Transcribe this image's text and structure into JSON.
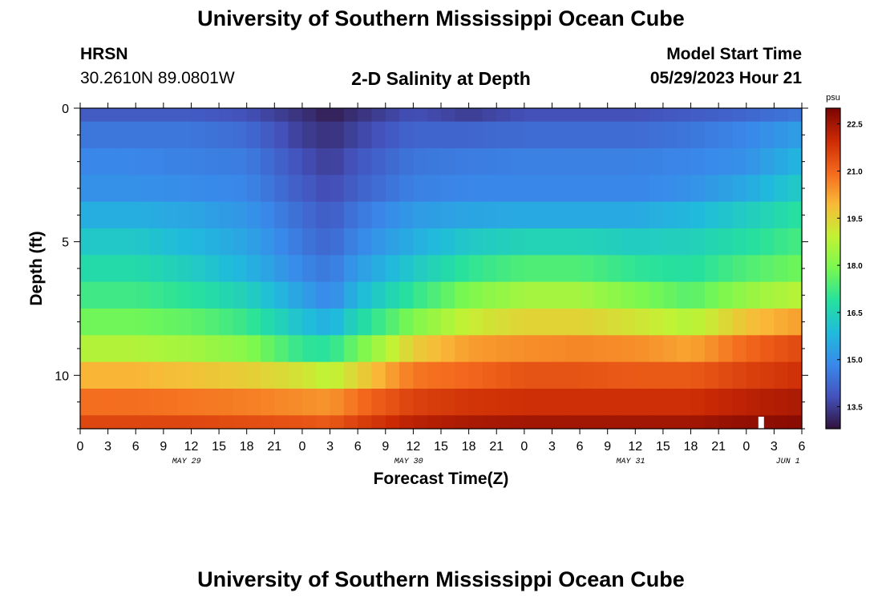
{
  "header": {
    "title": "University of Southern Mississippi Ocean Cube",
    "station": "HRSN",
    "coords": "30.2610N  89.0801W",
    "plot_title": "2-D Salinity at Depth",
    "model_label": "Model Start Time",
    "model_time": "05/29/2023 Hour 21"
  },
  "footer": {
    "title": "University of Southern Mississippi Ocean Cube"
  },
  "chart_data": {
    "type": "heatmap",
    "title": "2-D Salinity at Depth",
    "xlabel": "Forecast Time(Z)",
    "ylabel": "Depth (ft)",
    "x_ticks": [
      "0",
      "3",
      "6",
      "9",
      "12",
      "15",
      "18",
      "21",
      "0",
      "3",
      "6",
      "9",
      "12",
      "15",
      "18",
      "21",
      "0",
      "3",
      "6",
      "9",
      "12",
      "15",
      "18",
      "21",
      "0",
      "3",
      "6"
    ],
    "x_range_hours": [
      0,
      78
    ],
    "day_labels": [
      {
        "label": "MAY 29",
        "hour": 11.5
      },
      {
        "label": "MAY 30",
        "hour": 35.5
      },
      {
        "label": "MAY 31",
        "hour": 59.5
      },
      {
        "label": "JUN 1",
        "hour": 76.5
      }
    ],
    "y_ticks": [
      "0",
      "5",
      "10"
    ],
    "y_range_ft": [
      0,
      12
    ],
    "colorbar": {
      "unit": "psu",
      "ticks": [
        "13.5",
        "15.0",
        "16.5",
        "18.0",
        "19.5",
        "21.0",
        "22.5"
      ],
      "range": [
        12.8,
        23.0
      ]
    },
    "hours": [
      0,
      6,
      12,
      18,
      24,
      27,
      30,
      36,
      42,
      48,
      54,
      60,
      66,
      72,
      78
    ],
    "depths_ft": [
      0.25,
      1,
      2,
      3,
      4,
      5,
      6,
      7,
      8,
      9,
      10,
      11,
      11.75
    ],
    "values": [
      [
        14.0,
        14.0,
        14.0,
        13.8,
        13.3,
        13.0,
        13.3,
        13.8,
        13.5,
        13.8,
        13.8,
        13.8,
        14.0,
        14.2,
        14.5
      ],
      [
        14.5,
        14.5,
        14.5,
        14.3,
        13.5,
        13.3,
        13.6,
        14.2,
        14.2,
        14.3,
        14.3,
        14.3,
        14.5,
        14.8,
        15.3
      ],
      [
        14.8,
        14.8,
        14.7,
        14.6,
        13.8,
        13.5,
        13.9,
        14.5,
        14.6,
        14.7,
        14.7,
        14.7,
        14.8,
        15.0,
        15.8
      ],
      [
        15.0,
        15.0,
        14.9,
        14.8,
        14.0,
        13.7,
        14.1,
        14.7,
        14.8,
        14.8,
        14.8,
        14.8,
        15.0,
        15.5,
        16.3
      ],
      [
        15.6,
        15.6,
        15.4,
        15.1,
        14.3,
        14.0,
        14.5,
        15.2,
        15.4,
        15.5,
        15.5,
        15.5,
        15.8,
        16.3,
        16.9
      ],
      [
        16.2,
        16.2,
        15.8,
        15.4,
        14.5,
        14.2,
        14.8,
        15.6,
        16.2,
        16.5,
        16.5,
        16.3,
        16.4,
        16.8,
        17.3
      ],
      [
        16.7,
        16.7,
        16.3,
        15.7,
        14.8,
        14.5,
        15.2,
        16.2,
        17.0,
        17.4,
        17.4,
        17.0,
        16.8,
        17.4,
        17.8
      ],
      [
        17.2,
        17.2,
        16.9,
        16.4,
        15.3,
        14.8,
        15.8,
        17.0,
        18.0,
        18.5,
        18.5,
        18.0,
        17.5,
        18.3,
        18.8
      ],
      [
        17.8,
        17.8,
        17.6,
        17.1,
        16.0,
        15.6,
        16.6,
        18.0,
        19.0,
        19.5,
        19.5,
        19.2,
        18.7,
        19.8,
        20.3
      ],
      [
        18.7,
        18.7,
        18.5,
        18.1,
        17.0,
        16.9,
        17.8,
        19.6,
        20.3,
        20.5,
        20.6,
        20.5,
        20.2,
        21.0,
        21.5
      ],
      [
        20.0,
        20.0,
        19.8,
        19.6,
        19.2,
        18.8,
        19.5,
        20.8,
        21.0,
        21.3,
        21.3,
        21.2,
        21.2,
        21.6,
        21.9
      ],
      [
        20.9,
        20.9,
        20.8,
        20.7,
        20.5,
        20.4,
        20.9,
        21.6,
        21.8,
        21.9,
        21.9,
        21.9,
        21.9,
        22.2,
        22.4
      ],
      [
        21.5,
        21.5,
        21.5,
        21.4,
        21.3,
        21.2,
        21.6,
        22.2,
        22.4,
        22.5,
        22.5,
        22.5,
        22.5,
        22.7,
        22.8
      ]
    ],
    "marker_hour": 73.3
  }
}
